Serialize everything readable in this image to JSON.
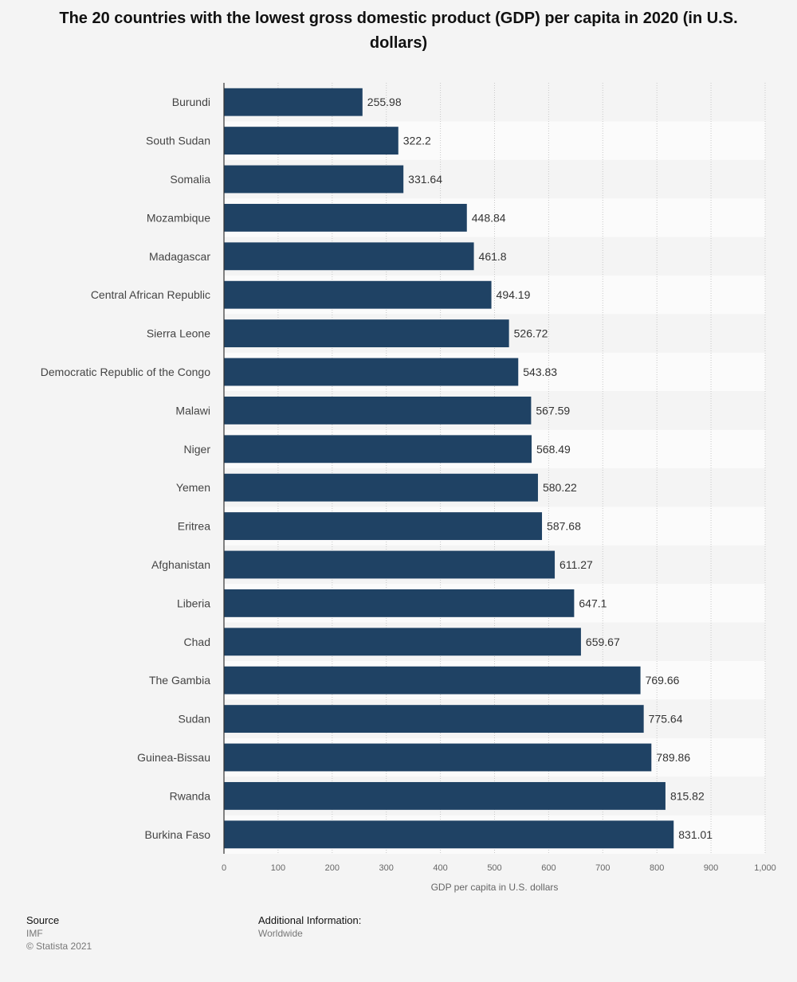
{
  "chart_data": {
    "type": "bar",
    "orientation": "horizontal",
    "title": "The 20 countries with the lowest gross domestic product (GDP) per capita in 2020 (in U.S. dollars)",
    "xlabel": "GDP per capita in U.S. dollars",
    "ylabel": "",
    "xlim": [
      0,
      1000
    ],
    "ticks": [
      0,
      100,
      200,
      300,
      400,
      500,
      600,
      700,
      800,
      900,
      1000
    ],
    "tick_labels": [
      "0",
      "100",
      "200",
      "300",
      "400",
      "500",
      "600",
      "700",
      "800",
      "900",
      "1,000"
    ],
    "grid": true,
    "categories": [
      "Burundi",
      "South Sudan",
      "Somalia",
      "Mozambique",
      "Madagascar",
      "Central African Republic",
      "Sierra Leone",
      "Democratic Republic of the Congo",
      "Malawi",
      "Niger",
      "Yemen",
      "Eritrea",
      "Afghanistan",
      "Liberia",
      "Chad",
      "The Gambia",
      "Sudan",
      "Guinea-Bissau",
      "Rwanda",
      "Burkina Faso"
    ],
    "values": [
      255.98,
      322.2,
      331.64,
      448.84,
      461.8,
      494.19,
      526.72,
      543.83,
      567.59,
      568.49,
      580.22,
      587.68,
      611.27,
      647.1,
      659.67,
      769.66,
      775.64,
      789.86,
      815.82,
      831.01
    ],
    "value_labels": [
      "255.98",
      "322.2",
      "331.64",
      "448.84",
      "461.8",
      "494.19",
      "526.72",
      "543.83",
      "567.59",
      "568.49",
      "580.22",
      "587.68",
      "611.27",
      "647.1",
      "659.67",
      "769.66",
      "775.64",
      "789.86",
      "815.82",
      "831.01"
    ]
  },
  "colors": {
    "bar": "#1f4264",
    "grid": "#c8c8c8",
    "band_alt": "#fbfbfb",
    "axis": "#333333"
  },
  "footer": {
    "source_heading": "Source",
    "source_value": "IMF",
    "copyright": "© Statista 2021",
    "additional_heading": "Additional Information:",
    "additional_value": "Worldwide"
  }
}
